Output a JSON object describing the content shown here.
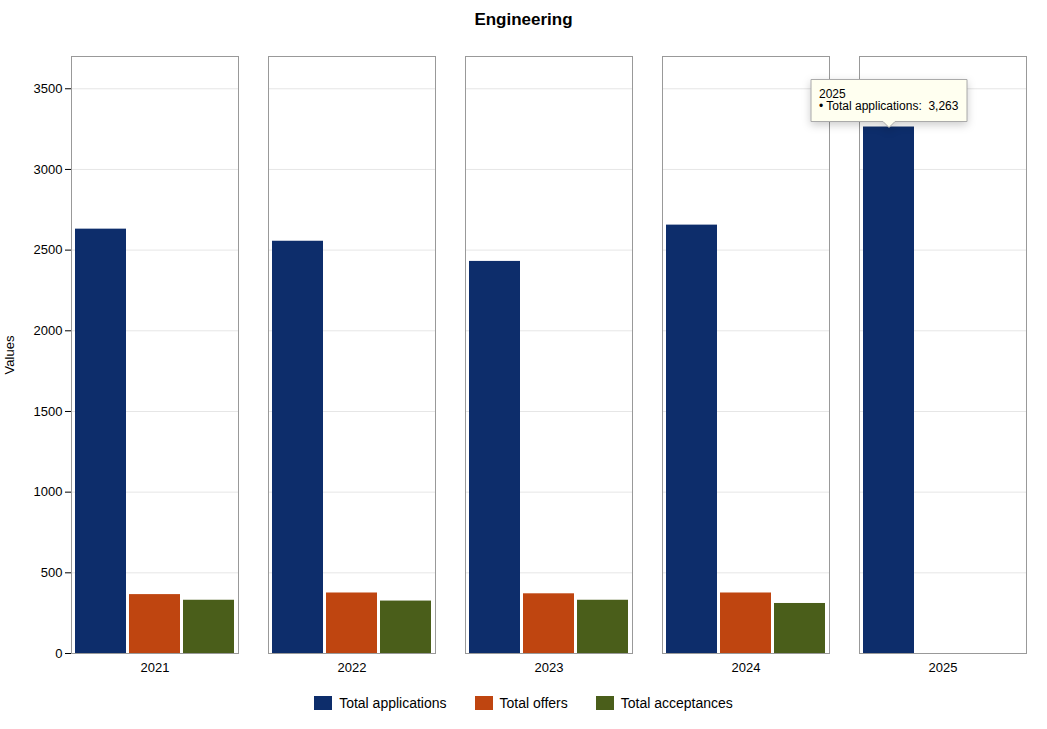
{
  "chart_data": {
    "type": "bar",
    "title": "Engineering",
    "categories": [
      "2021",
      "2022",
      "2023",
      "2024",
      "2025"
    ],
    "series": [
      {
        "name": "Total applications",
        "color": "#0d2d6b",
        "values": [
          2630,
          2555,
          2430,
          2655,
          3263
        ]
      },
      {
        "name": "Total offers",
        "color": "#bf4510",
        "values": [
          365,
          375,
          370,
          375,
          0
        ]
      },
      {
        "name": "Total acceptances",
        "color": "#4a5e1a",
        "values": [
          330,
          325,
          330,
          310,
          0
        ]
      }
    ],
    "ylabel": "Values",
    "ylim": [
      0,
      3700
    ],
    "yticks": [
      0,
      500,
      1000,
      1500,
      2000,
      2500,
      3000,
      3500
    ],
    "grid": true,
    "legend": "bottom",
    "annotations": [
      {
        "text": "2025\n• Total applications:  3,263",
        "x": "2025",
        "series": "Total applications",
        "y": 3263
      }
    ]
  }
}
